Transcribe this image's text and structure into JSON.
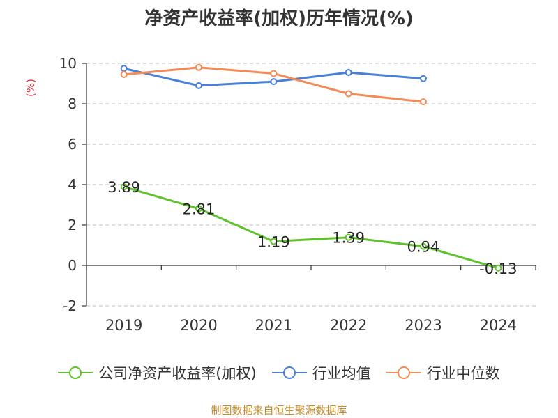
{
  "title": "净资产收益率(加权)历年情况(%)",
  "source": "制图数据来自恒生聚源数据库",
  "chart_data": {
    "type": "line",
    "title": "净资产收益率(加权)历年情况(%)",
    "ylabel": "(%)",
    "xlabel": "",
    "categories": [
      "2019",
      "2020",
      "2021",
      "2022",
      "2023",
      "2024"
    ],
    "ylim": [
      -2,
      10
    ],
    "yticks": [
      -2,
      0,
      2,
      4,
      6,
      8,
      10
    ],
    "grid": "horizontal-dashed",
    "legend_position": "bottom",
    "series": [
      {
        "name": "公司净资产收益率(加权)",
        "color": "#5ec22b",
        "values": [
          3.89,
          2.81,
          1.19,
          1.39,
          0.94,
          -0.13
        ],
        "labels": [
          "3.89",
          "2.81",
          "1.19",
          "1.39",
          "0.94",
          "-0.13"
        ]
      },
      {
        "name": "行业均值",
        "color": "#4a80d9",
        "values": [
          9.75,
          8.9,
          9.1,
          9.55,
          9.25,
          null
        ]
      },
      {
        "name": "行业中位数",
        "color": "#f58b54",
        "values": [
          9.45,
          9.8,
          9.5,
          8.5,
          8.1,
          null
        ]
      }
    ]
  }
}
